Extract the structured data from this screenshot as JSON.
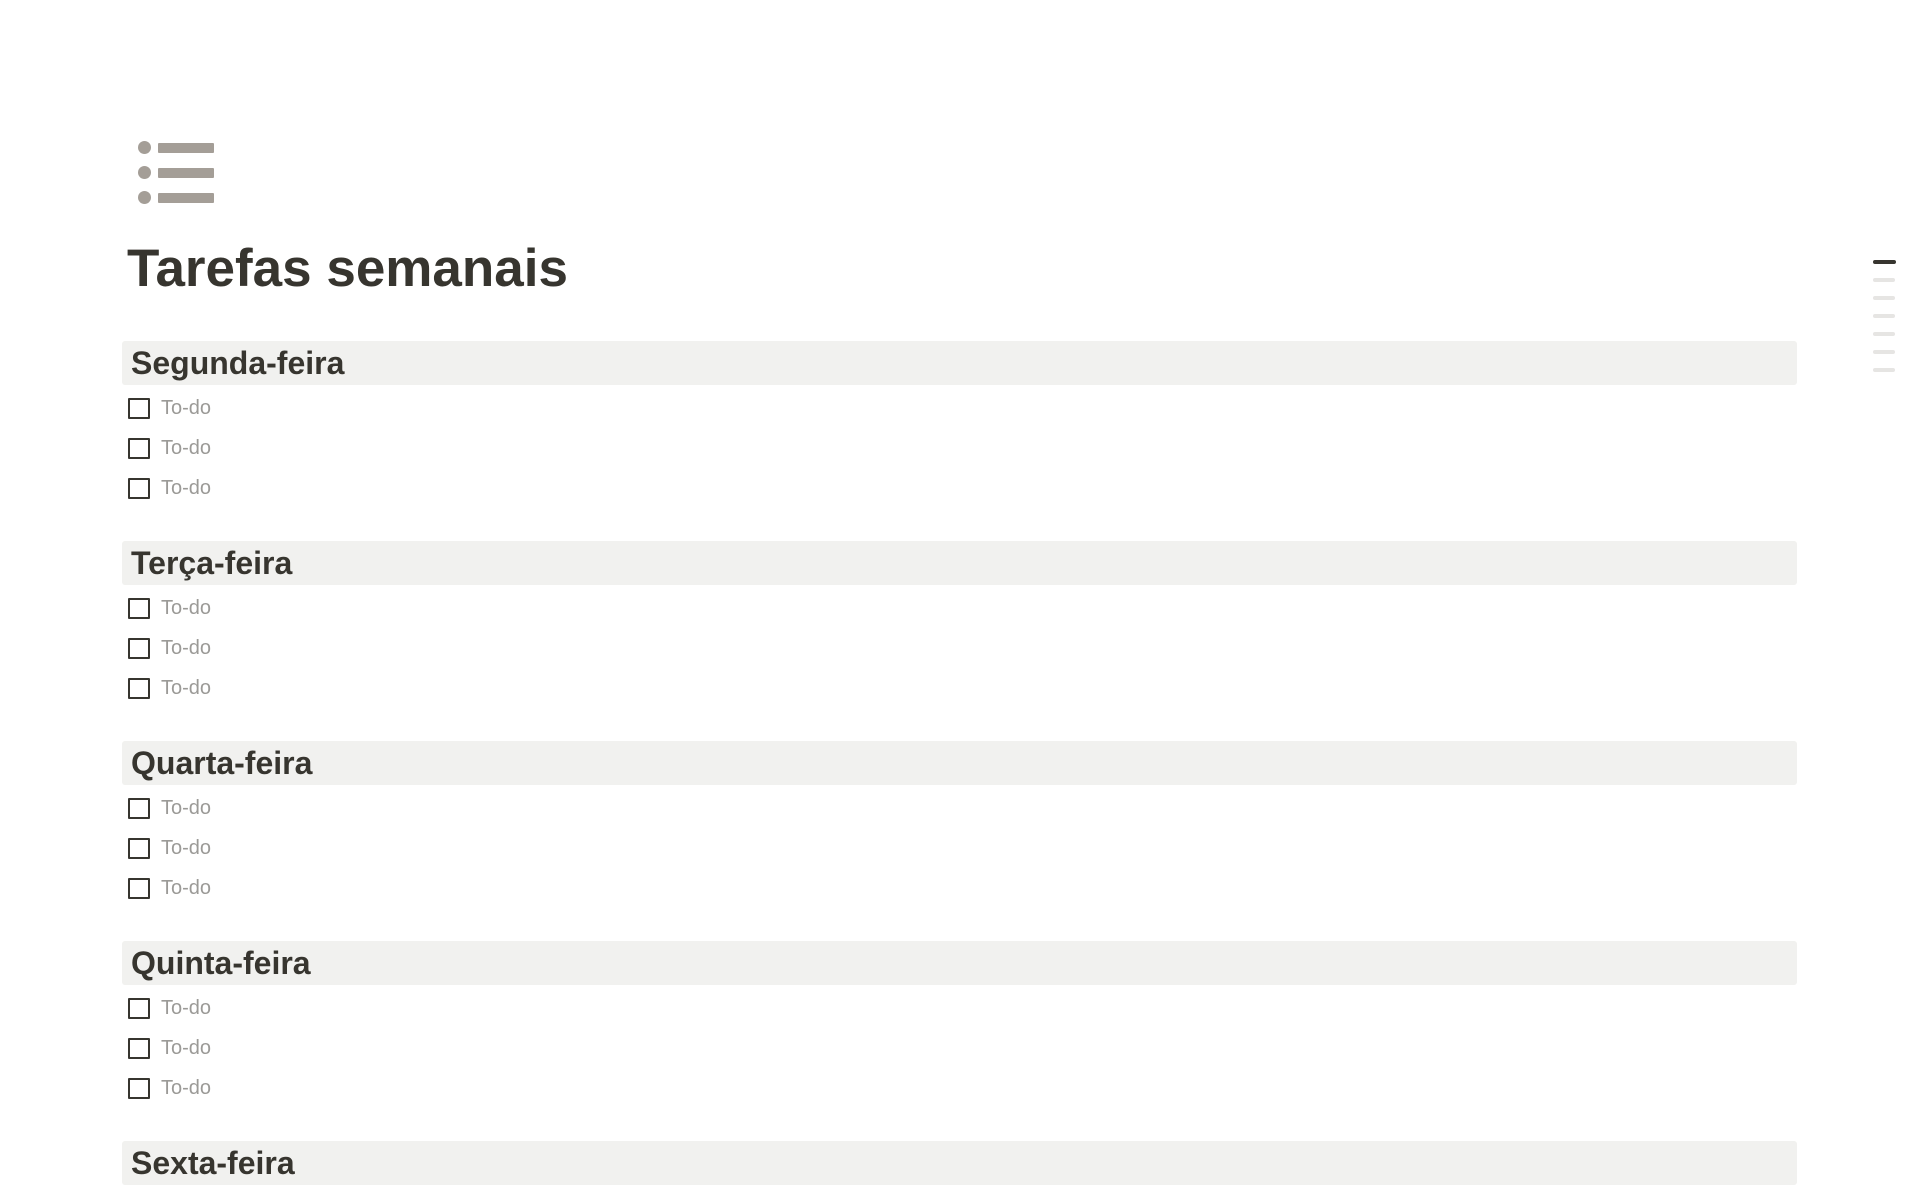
{
  "page": {
    "title": "Tarefas semanais",
    "icon": "bulleted-list"
  },
  "sections": [
    {
      "heading": "Segunda-feira",
      "todos": [
        "To-do",
        "To-do",
        "To-do"
      ]
    },
    {
      "heading": "Terça-feira",
      "todos": [
        "To-do",
        "To-do",
        "To-do"
      ]
    },
    {
      "heading": "Quarta-feira",
      "todos": [
        "To-do",
        "To-do",
        "To-do"
      ]
    },
    {
      "heading": "Quinta-feira",
      "todos": [
        "To-do",
        "To-do",
        "To-do"
      ]
    },
    {
      "heading": "Sexta-feira",
      "todos": []
    }
  ],
  "toc": {
    "line_count": 7,
    "active_index": 0
  },
  "colors": {
    "text-dark": "#37352f",
    "todo-gray": "#9b9a97",
    "heading-bg": "#f1f1ef",
    "icon-gray": "#a49e97",
    "toc-inactive": "#e6e5e3",
    "checkbox-border": "#37352f"
  }
}
